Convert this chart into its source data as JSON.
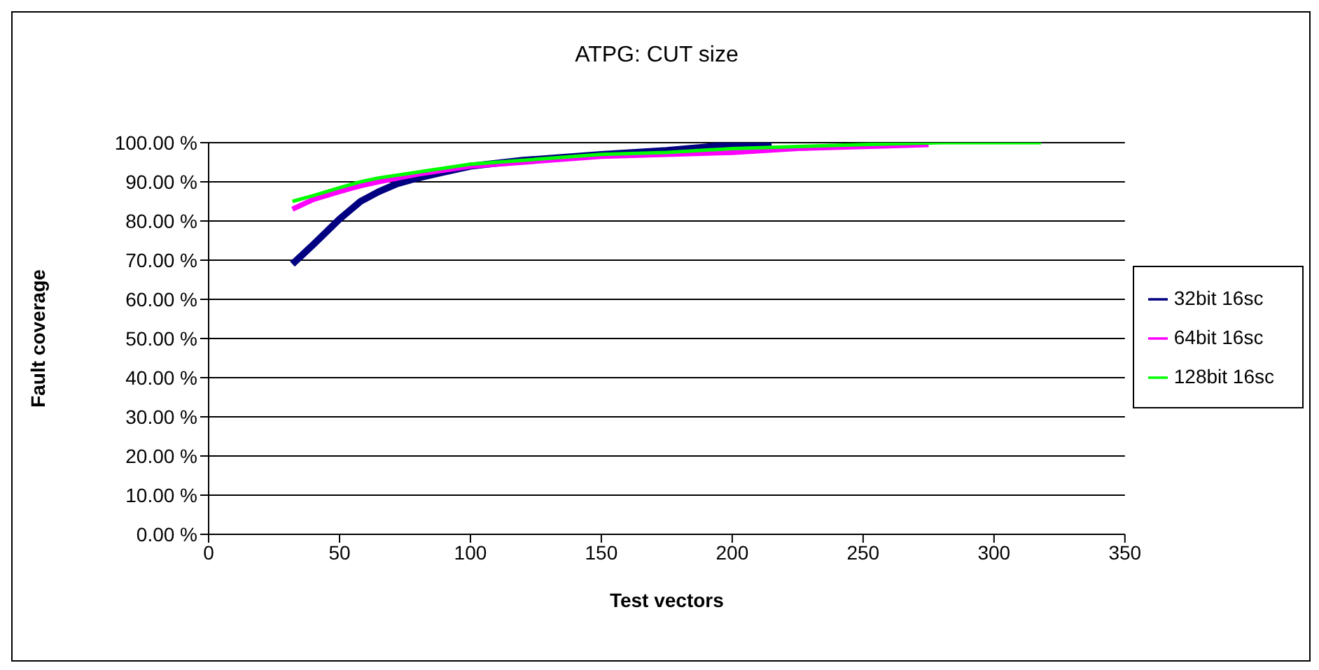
{
  "chart_data": {
    "type": "line",
    "title": "ATPG: CUT size",
    "xlabel": "Test vectors",
    "ylabel": "Fault coverage",
    "xlim": [
      0,
      350
    ],
    "xticks": [
      0,
      50,
      100,
      150,
      200,
      250,
      300,
      350
    ],
    "ylim": [
      0,
      100
    ],
    "yticks": [
      {
        "value": 0,
        "label": "0.00 %"
      },
      {
        "value": 10,
        "label": "10.00 %"
      },
      {
        "value": 20,
        "label": "20.00 %"
      },
      {
        "value": 30,
        "label": "30.00 %"
      },
      {
        "value": 40,
        "label": "40.00 %"
      },
      {
        "value": 50,
        "label": "50.00 %"
      },
      {
        "value": 60,
        "label": "60.00 %"
      },
      {
        "value": 70,
        "label": "70.00 %"
      },
      {
        "value": 80,
        "label": "80.00 %"
      },
      {
        "value": 90,
        "label": "90.00 %"
      },
      {
        "value": 100,
        "label": "100.00 %"
      }
    ],
    "grid": "y",
    "legend": "right",
    "marker": "none",
    "line_style": "solid",
    "series": [
      {
        "name": "32bit 16sc",
        "color": "#000080",
        "x": [
          32,
          40,
          50,
          58,
          65,
          72,
          80,
          90,
          100,
          120,
          150,
          175,
          200,
          215
        ],
        "values": [
          69,
          74,
          80.5,
          85,
          87.5,
          89.5,
          91,
          92.5,
          94,
          95.5,
          97,
          98,
          99.5,
          100
        ]
      },
      {
        "name": "64bit 16sc",
        "color": "#ff00ff",
        "x": [
          32,
          40,
          50,
          58,
          65,
          80,
          100,
          120,
          150,
          175,
          200,
          225,
          250,
          275
        ],
        "values": [
          83,
          85.5,
          87.5,
          89,
          90,
          92,
          94,
          95,
          96.5,
          97,
          97.5,
          98.5,
          99,
          99.5
        ]
      },
      {
        "name": "128bit 16sc",
        "color": "#00ff00",
        "x": [
          32,
          40,
          50,
          58,
          65,
          80,
          100,
          120,
          150,
          175,
          200,
          225,
          250,
          280,
          318
        ],
        "values": [
          85,
          86.5,
          88.5,
          90,
          91,
          92.5,
          94.5,
          95.5,
          97,
          97.5,
          98.5,
          99,
          99.5,
          100,
          100
        ]
      }
    ]
  }
}
